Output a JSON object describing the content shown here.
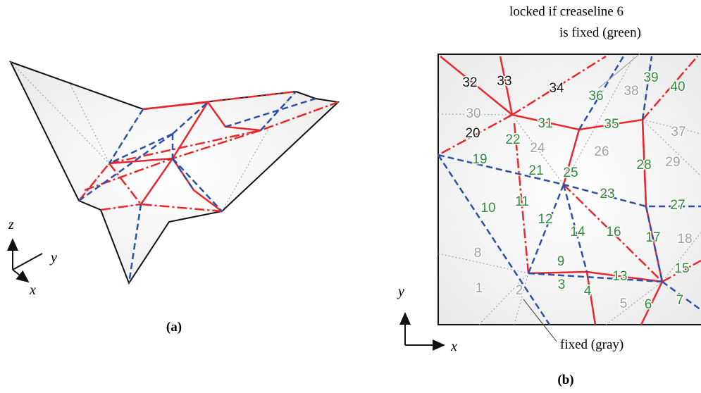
{
  "panel_a": {
    "caption": "(a)",
    "axis_z": "z",
    "axis_y": "y",
    "axis_x": "x"
  },
  "panel_b": {
    "caption": "(b)",
    "annotation_top": [
      "locked if creaseline 6",
      "is fixed (green)"
    ],
    "annotation_bottom": "fixed (gray)",
    "axis_y": "y",
    "axis_x": "x",
    "creaselines": [
      {
        "label": "1",
        "color": "#a0a0a0"
      },
      {
        "label": "2",
        "color": "#a0a0a0"
      },
      {
        "label": "3",
        "color": "#2e8b3a"
      },
      {
        "label": "4",
        "color": "#2e8b3a"
      },
      {
        "label": "5",
        "color": "#a0a0a0"
      },
      {
        "label": "6",
        "color": "#2e8b3a"
      },
      {
        "label": "7",
        "color": "#2e8b3a"
      },
      {
        "label": "8",
        "color": "#a0a0a0"
      },
      {
        "label": "9",
        "color": "#2e8b3a"
      },
      {
        "label": "10",
        "color": "#2e8b3a"
      },
      {
        "label": "11",
        "color": "#2e8b3a"
      },
      {
        "label": "12",
        "color": "#2e8b3a"
      },
      {
        "label": "13",
        "color": "#2e8b3a"
      },
      {
        "label": "14",
        "color": "#2e8b3a"
      },
      {
        "label": "15",
        "color": "#2e8b3a"
      },
      {
        "label": "16",
        "color": "#2e8b3a"
      },
      {
        "label": "17",
        "color": "#2e8b3a"
      },
      {
        "label": "18",
        "color": "#a0a0a0"
      },
      {
        "label": "19",
        "color": "#2e8b3a"
      },
      {
        "label": "20",
        "color": "#111111"
      },
      {
        "label": "21",
        "color": "#2e8b3a"
      },
      {
        "label": "22",
        "color": "#2e8b3a"
      },
      {
        "label": "23",
        "color": "#2e8b3a"
      },
      {
        "label": "24",
        "color": "#a0a0a0"
      },
      {
        "label": "25",
        "color": "#2e8b3a"
      },
      {
        "label": "26",
        "color": "#a0a0a0"
      },
      {
        "label": "27",
        "color": "#2e8b3a"
      },
      {
        "label": "28",
        "color": "#2e8b3a"
      },
      {
        "label": "29",
        "color": "#a0a0a0"
      },
      {
        "label": "30",
        "color": "#a0a0a0"
      },
      {
        "label": "31",
        "color": "#2e8b3a"
      },
      {
        "label": "32",
        "color": "#111111"
      },
      {
        "label": "33",
        "color": "#111111"
      },
      {
        "label": "34",
        "color": "#111111"
      },
      {
        "label": "35",
        "color": "#2e8b3a"
      },
      {
        "label": "36",
        "color": "#2e8b3a"
      },
      {
        "label": "37",
        "color": "#a0a0a0"
      },
      {
        "label": "38",
        "color": "#a0a0a0"
      },
      {
        "label": "39",
        "color": "#2e8b3a"
      },
      {
        "label": "40",
        "color": "#2e8b3a"
      }
    ]
  }
}
